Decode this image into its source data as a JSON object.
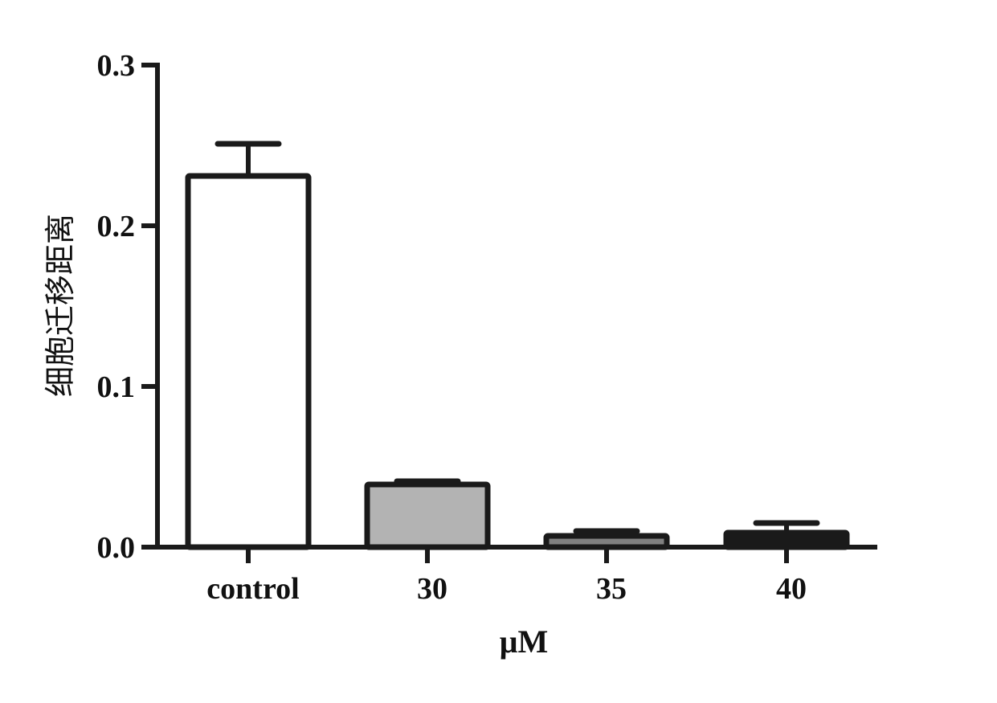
{
  "chart_data": {
    "type": "bar",
    "categories": [
      "control",
      "30",
      "35",
      "40"
    ],
    "values": [
      0.231,
      0.039,
      0.007,
      0.009
    ],
    "errors": [
      0.02,
      0.002,
      0.003,
      0.006
    ],
    "xlabel": "μM",
    "ylabel": "细胞迁移距离",
    "ylim": [
      0,
      0.3
    ],
    "yticks": [
      "0.0",
      "0.1",
      "0.2",
      "0.3"
    ],
    "grid": false,
    "bar_fills": [
      "#ffffff",
      "#b3b3b3",
      "#808080",
      "#1a1a1a"
    ],
    "stroke_color": "#1a1a1a"
  }
}
